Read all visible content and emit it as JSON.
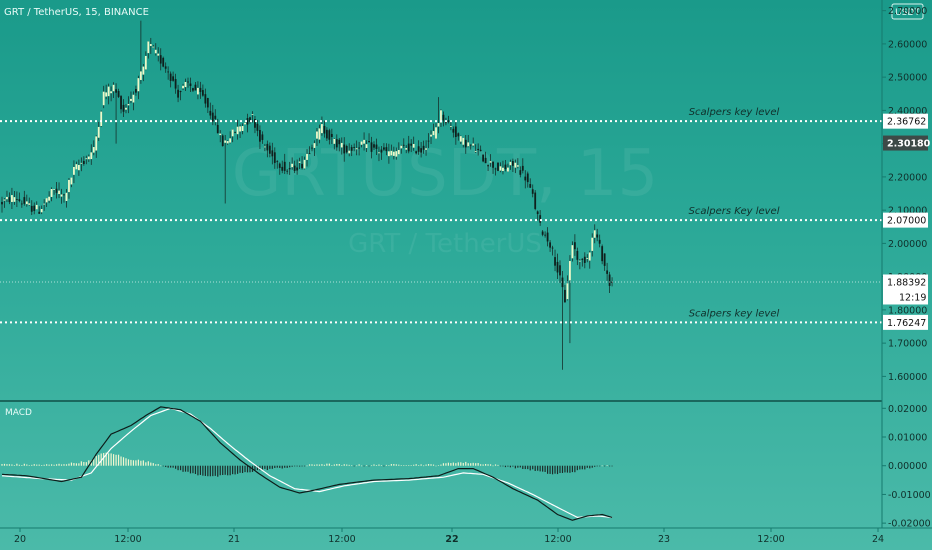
{
  "title": "GRT / TetherUS, 15, BINANCE",
  "watermark": {
    "symbol": "GRTUSDT, 15",
    "name": "GRT / TetherUS"
  },
  "currency_button": "USDT",
  "indicator_label": "MACD",
  "chart_data": {
    "type": "candlestick",
    "title": "GRT / TetherUS, 15, BINANCE",
    "x_ticks": [
      "20",
      "12:00",
      "21",
      "12:00",
      "22",
      "12:00",
      "23",
      "12:00",
      "24"
    ],
    "price_axis": {
      "ticks": [
        "1.60000",
        "1.70000",
        "1.80000",
        "1.90000",
        "2.00000",
        "2.10000",
        "2.20000",
        "2.30000",
        "2.40000",
        "2.50000",
        "2.60000",
        "2.70000"
      ],
      "range": [
        1.535,
        2.72
      ]
    },
    "levels": [
      {
        "price": 2.36762,
        "label": "2.36762",
        "annotation": "Scalpers key level"
      },
      {
        "price": 2.07,
        "label": "2.07000",
        "annotation": "Scalpers Key level"
      },
      {
        "price": 1.76247,
        "label": "1.76247",
        "annotation": "Scalpers key level"
      }
    ],
    "current_price": {
      "price": 1.88392,
      "label": "1.88392",
      "countdown": "12:19"
    },
    "highlight_price": {
      "price": 2.3018,
      "label": "2.30180"
    },
    "price_path": [
      [
        0,
        2.12
      ],
      [
        6,
        2.14
      ],
      [
        12,
        2.11
      ],
      [
        16,
        2.1
      ],
      [
        22,
        2.16
      ],
      [
        26,
        2.14
      ],
      [
        30,
        2.22
      ],
      [
        34,
        2.25
      ],
      [
        38,
        2.28
      ],
      [
        42,
        2.45
      ],
      [
        46,
        2.47
      ],
      [
        50,
        2.4
      ],
      [
        54,
        2.45
      ],
      [
        58,
        2.52
      ],
      [
        60,
        2.6
      ],
      [
        64,
        2.56
      ],
      [
        68,
        2.52
      ],
      [
        72,
        2.45
      ],
      [
        76,
        2.48
      ],
      [
        82,
        2.44
      ],
      [
        86,
        2.38
      ],
      [
        90,
        2.3
      ],
      [
        94,
        2.33
      ],
      [
        98,
        2.36
      ],
      [
        102,
        2.38
      ],
      [
        106,
        2.3
      ],
      [
        110,
        2.26
      ],
      [
        116,
        2.22
      ],
      [
        122,
        2.24
      ],
      [
        126,
        2.3
      ],
      [
        130,
        2.35
      ],
      [
        134,
        2.31
      ],
      [
        140,
        2.28
      ],
      [
        146,
        2.3
      ],
      [
        152,
        2.28
      ],
      [
        158,
        2.27
      ],
      [
        164,
        2.29
      ],
      [
        170,
        2.28
      ],
      [
        175,
        2.33
      ],
      [
        178,
        2.39
      ],
      [
        181,
        2.36
      ],
      [
        186,
        2.31
      ],
      [
        191,
        2.29
      ],
      [
        196,
        2.25
      ],
      [
        202,
        2.22
      ],
      [
        208,
        2.24
      ],
      [
        212,
        2.2
      ],
      [
        215,
        2.14
      ],
      [
        218,
        2.05
      ],
      [
        222,
        2.0
      ],
      [
        225,
        1.92
      ],
      [
        228,
        1.83
      ],
      [
        231,
        2.0
      ],
      [
        234,
        1.94
      ],
      [
        237,
        1.96
      ],
      [
        240,
        2.04
      ],
      [
        243,
        1.96
      ],
      [
        246,
        1.88
      ]
    ],
    "price_spikes": [
      [
        46,
        2.3
      ],
      [
        56,
        2.67
      ],
      [
        90,
        2.12
      ],
      [
        176,
        2.44
      ],
      [
        226,
        1.62
      ],
      [
        229,
        1.7
      ]
    ],
    "macd_axis": {
      "ticks": [
        "-0.02000",
        "-0.01000",
        "0.00000",
        "0.01000",
        "0.02000"
      ],
      "range": [
        -0.021,
        0.0215
      ]
    },
    "macd_line": [
      [
        0,
        -0.003
      ],
      [
        10,
        -0.0035
      ],
      [
        24,
        -0.0055
      ],
      [
        32,
        -0.004
      ],
      [
        38,
        0.004
      ],
      [
        44,
        0.011
      ],
      [
        52,
        0.014
      ],
      [
        58,
        0.0175
      ],
      [
        64,
        0.0205
      ],
      [
        72,
        0.0195
      ],
      [
        80,
        0.0155
      ],
      [
        88,
        0.008
      ],
      [
        96,
        0.002
      ],
      [
        104,
        -0.003
      ],
      [
        112,
        -0.0075
      ],
      [
        120,
        -0.0095
      ],
      [
        126,
        -0.0085
      ],
      [
        136,
        -0.0065
      ],
      [
        150,
        -0.005
      ],
      [
        164,
        -0.0045
      ],
      [
        176,
        -0.0035
      ],
      [
        184,
        -0.001
      ],
      [
        190,
        -0.001
      ],
      [
        198,
        -0.004
      ],
      [
        206,
        -0.008
      ],
      [
        216,
        -0.012
      ],
      [
        224,
        -0.017
      ],
      [
        230,
        -0.019
      ],
      [
        236,
        -0.0175
      ],
      [
        242,
        -0.017
      ],
      [
        246,
        -0.018
      ]
    ],
    "signal_line": [
      [
        0,
        -0.0035
      ],
      [
        16,
        -0.0045
      ],
      [
        28,
        -0.005
      ],
      [
        36,
        -0.0025
      ],
      [
        44,
        0.006
      ],
      [
        52,
        0.012
      ],
      [
        60,
        0.0175
      ],
      [
        68,
        0.02
      ],
      [
        76,
        0.018
      ],
      [
        84,
        0.013
      ],
      [
        92,
        0.007
      ],
      [
        100,
        0.0015
      ],
      [
        108,
        -0.0035
      ],
      [
        118,
        -0.008
      ],
      [
        128,
        -0.009
      ],
      [
        138,
        -0.007
      ],
      [
        150,
        -0.0055
      ],
      [
        164,
        -0.005
      ],
      [
        178,
        -0.004
      ],
      [
        186,
        -0.0025
      ],
      [
        194,
        -0.003
      ],
      [
        204,
        -0.006
      ],
      [
        214,
        -0.01
      ],
      [
        224,
        -0.0145
      ],
      [
        232,
        -0.018
      ],
      [
        240,
        -0.0175
      ],
      [
        246,
        -0.018
      ]
    ],
    "histogram_envelope": [
      [
        0,
        0.0005
      ],
      [
        20,
        0.0003
      ],
      [
        30,
        0.001
      ],
      [
        36,
        0.0018
      ],
      [
        40,
        0.0045
      ],
      [
        46,
        0.004
      ],
      [
        50,
        0.0025
      ],
      [
        56,
        0.0018
      ],
      [
        62,
        0.0008
      ],
      [
        70,
        -0.0012
      ],
      [
        78,
        -0.003
      ],
      [
        86,
        -0.0038
      ],
      [
        94,
        -0.003
      ],
      [
        104,
        -0.0015
      ],
      [
        112,
        -0.0008
      ],
      [
        120,
        -0.0002
      ],
      [
        128,
        0.0006
      ],
      [
        140,
        0.0002
      ],
      [
        150,
        0.0002
      ],
      [
        164,
        0.0004
      ],
      [
        176,
        0.0003
      ],
      [
        182,
        0.0012
      ],
      [
        190,
        0.001
      ],
      [
        198,
        0.0003
      ],
      [
        206,
        -0.0005
      ],
      [
        214,
        -0.0015
      ],
      [
        222,
        -0.003
      ],
      [
        230,
        -0.0022
      ],
      [
        238,
        -0.0005
      ],
      [
        246,
        0.0002
      ]
    ]
  }
}
